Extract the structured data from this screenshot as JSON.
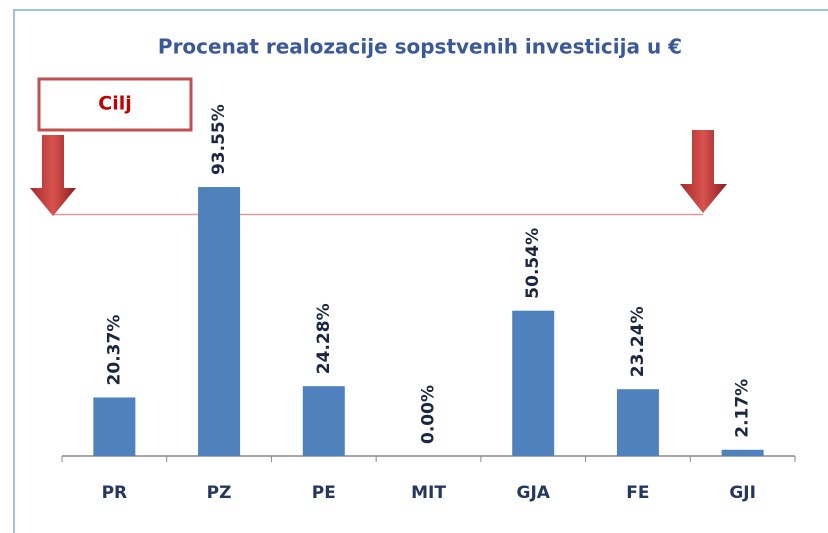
{
  "chart_data": {
    "type": "bar",
    "title": "Procenat realozacije sopstvenih investicija u €",
    "categories": [
      "PR",
      "PZ",
      "PE",
      "MIT",
      "GJA",
      "FE",
      "GJI"
    ],
    "values": [
      20.37,
      93.55,
      24.28,
      0.0,
      50.54,
      23.24,
      2.17
    ],
    "value_labels": [
      "20.37%",
      "93.55%",
      "24.28%",
      "0.00%",
      "50.54%",
      "23.24%",
      "2.17%"
    ],
    "color": "#4f81bd",
    "ylim": [
      0,
      120
    ],
    "target": {
      "label": "Cilj",
      "value": 84,
      "color": "#e39a9a"
    }
  }
}
